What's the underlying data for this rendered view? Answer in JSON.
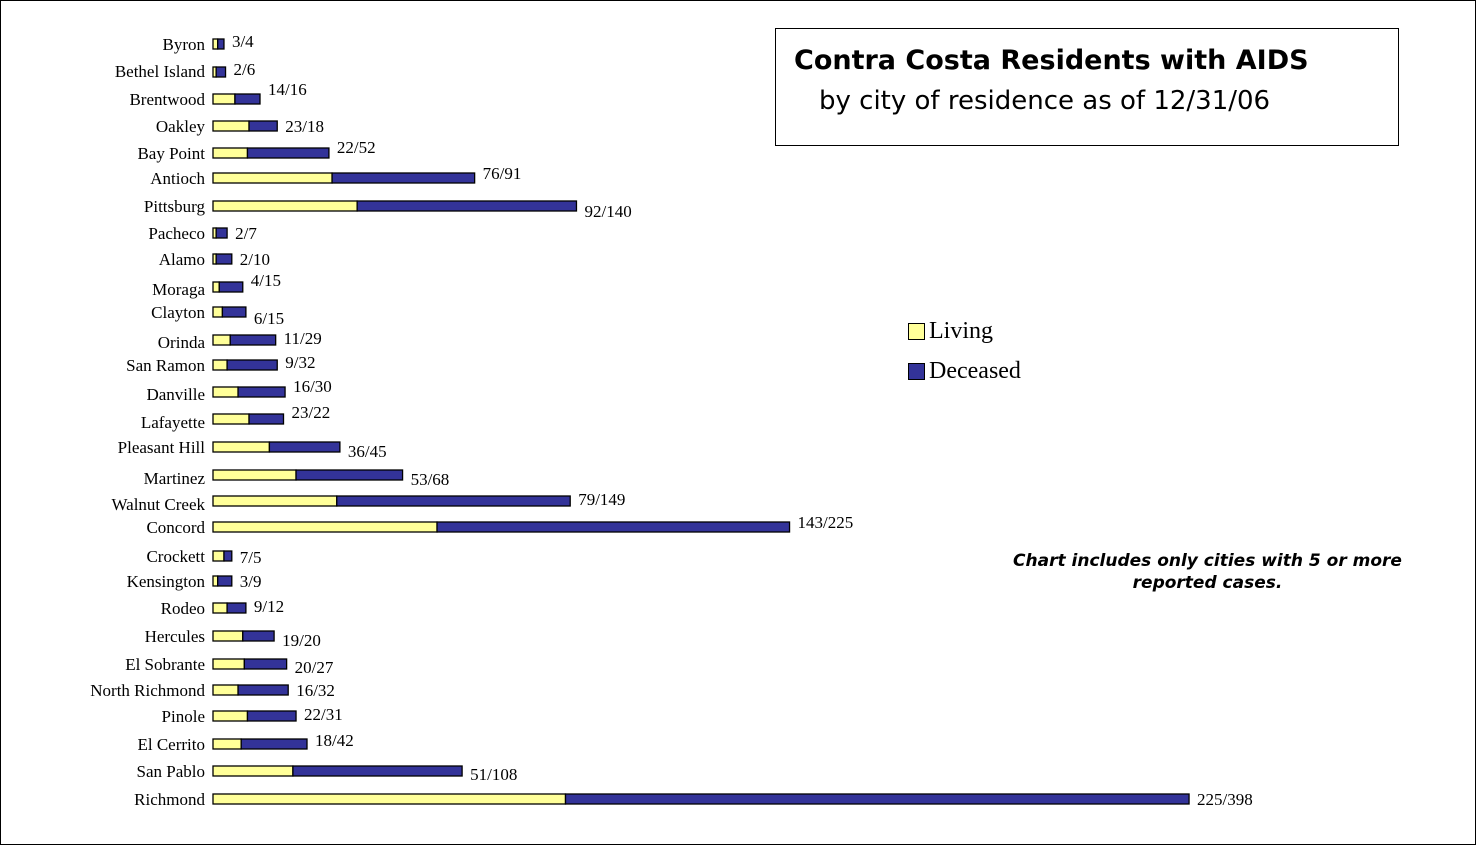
{
  "chart_data": {
    "type": "bar",
    "orientation": "horizontal",
    "stacked": true,
    "title": "Contra Costa Residents with AIDS",
    "subtitle": "by city of residence as of 12/31/06",
    "note": "Chart includes only cities with 5 or more reported cases.",
    "legend_position": "right",
    "grid": false,
    "categories": [
      "Byron",
      "Bethel Island",
      "Brentwood",
      "Oakley",
      "Bay Point",
      "Antioch",
      "Pittsburg",
      "Pacheco",
      "Alamo",
      "Moraga",
      "Clayton",
      "Orinda",
      "San Ramon",
      "Danville",
      "Lafayette",
      "Pleasant Hill",
      "Martinez",
      "Walnut Creek",
      "Concord",
      "Crockett",
      "Kensington",
      "Rodeo",
      "Hercules",
      "El Sobrante",
      "North Richmond",
      "Pinole",
      "El Cerrito",
      "San Pablo",
      "Richmond"
    ],
    "series": [
      {
        "name": "Living",
        "color": "#ffff99",
        "values": [
          3,
          2,
          14,
          23,
          22,
          76,
          92,
          2,
          2,
          4,
          6,
          11,
          9,
          16,
          23,
          36,
          53,
          79,
          143,
          7,
          3,
          9,
          19,
          20,
          16,
          22,
          18,
          51,
          225
        ]
      },
      {
        "name": "Deceased",
        "color": "#333399",
        "values": [
          4,
          6,
          16,
          18,
          52,
          91,
          140,
          7,
          10,
          15,
          15,
          29,
          32,
          30,
          22,
          45,
          68,
          149,
          225,
          5,
          9,
          12,
          20,
          27,
          32,
          31,
          42,
          108,
          398
        ]
      }
    ],
    "data_labels": [
      "3/4",
      "2/6",
      "14/16",
      "23/18",
      "22/52",
      "76/91",
      "92/140",
      "2/7",
      "2/10",
      "4/15",
      "6/15",
      "11/29",
      "9/32",
      "16/30",
      "23/22",
      "36/45",
      "53/68",
      "79/149",
      "143/225",
      "7/5",
      "3/9",
      "9/12",
      "19/20",
      "20/27",
      "16/32",
      "22/31",
      "18/42",
      "51/108",
      "225/398"
    ]
  }
}
